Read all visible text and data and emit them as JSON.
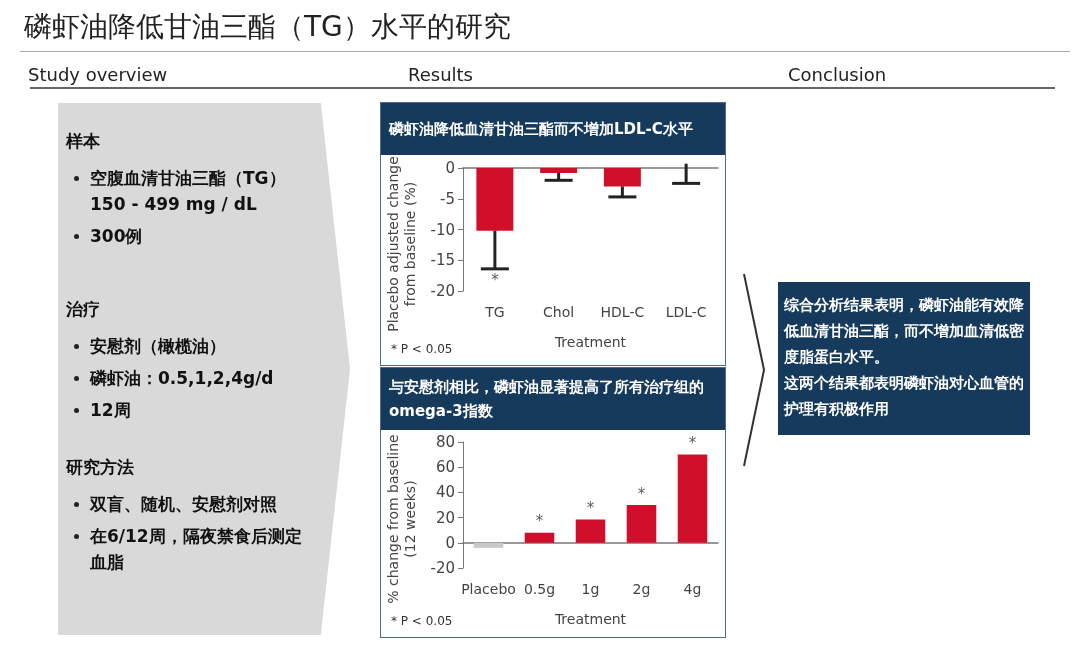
{
  "chart_data": [
    {
      "type": "other",
      "title": "磷虾油降低甘油三酯（TG）水平的研究",
      "annotations": [
        "Study overview",
        "Results",
        "Conclusion"
      ]
    },
    {
      "type": "other",
      "title": "样本",
      "annotations": [
        "空腹血清甘油三酯（TG）150 - 499 mg / dL",
        "300例"
      ]
    },
    {
      "type": "other",
      "title": "治疗",
      "annotations": [
        "安慰剂（橄榄油）",
        "磷虾油：0.5,1,2,4g/d",
        "12周"
      ]
    },
    {
      "type": "other",
      "title": "研究方法",
      "annotations": [
        "双盲、随机、安慰剂对照",
        "在6/12周，隔夜禁食后测定血脂"
      ]
    },
    {
      "type": "bar",
      "title": "磷虾油降低血清甘油三酯而不增加LDL-C水平",
      "xlabel": "Treatment",
      "ylabel": "Placebo adjusted change from baseline (%)",
      "categories": [
        "TG",
        "Chol",
        "HDL-C",
        "LDL-C"
      ],
      "values": [
        -10.2,
        -0.8,
        -3.0,
        0
      ],
      "color": "#d0102a",
      "errors": [
        [
          -16.4,
          -10.2
        ],
        [
          -2.0,
          -0.8
        ],
        [
          -4.7,
          -3.0
        ],
        [
          -2.5,
          0.7
        ]
      ],
      "ylim": [
        -20,
        0
      ],
      "yticks": [
        -20,
        -15,
        -10,
        -5,
        0
      ],
      "value_labels": [
        "*",
        null,
        null,
        null
      ],
      "annotations": [
        "* P < 0.05"
      ]
    },
    {
      "type": "bar",
      "title": "与安慰剂相比，磷虾油显著提高了所有治疗组的omega-3指数",
      "xlabel": "Treatment",
      "ylabel": "% change from baseline (12 weeks)",
      "categories": [
        "Placebo",
        "0.5g",
        "1g",
        "2g",
        "4g"
      ],
      "values": [
        -4,
        8,
        18.5,
        30,
        70
      ],
      "colors": [
        "#c8c8c8",
        "#d0102a",
        "#d0102a",
        "#d0102a",
        "#d0102a"
      ],
      "ylim": [
        -20,
        80
      ],
      "yticks": [
        -20,
        0,
        20,
        40,
        60,
        80
      ],
      "value_labels": [
        null,
        "*",
        "*",
        "*",
        "*"
      ],
      "annotations": [
        "* P < 0.05"
      ]
    },
    {
      "type": "other",
      "annotations": [
        "综合分析结果表明，磷虾油能有效降低血清甘油三酯，而不增加血清低密度脂蛋白水平。",
        "这两个结果都表明磷虾油对心血管的护理有积极作用"
      ]
    }
  ]
}
